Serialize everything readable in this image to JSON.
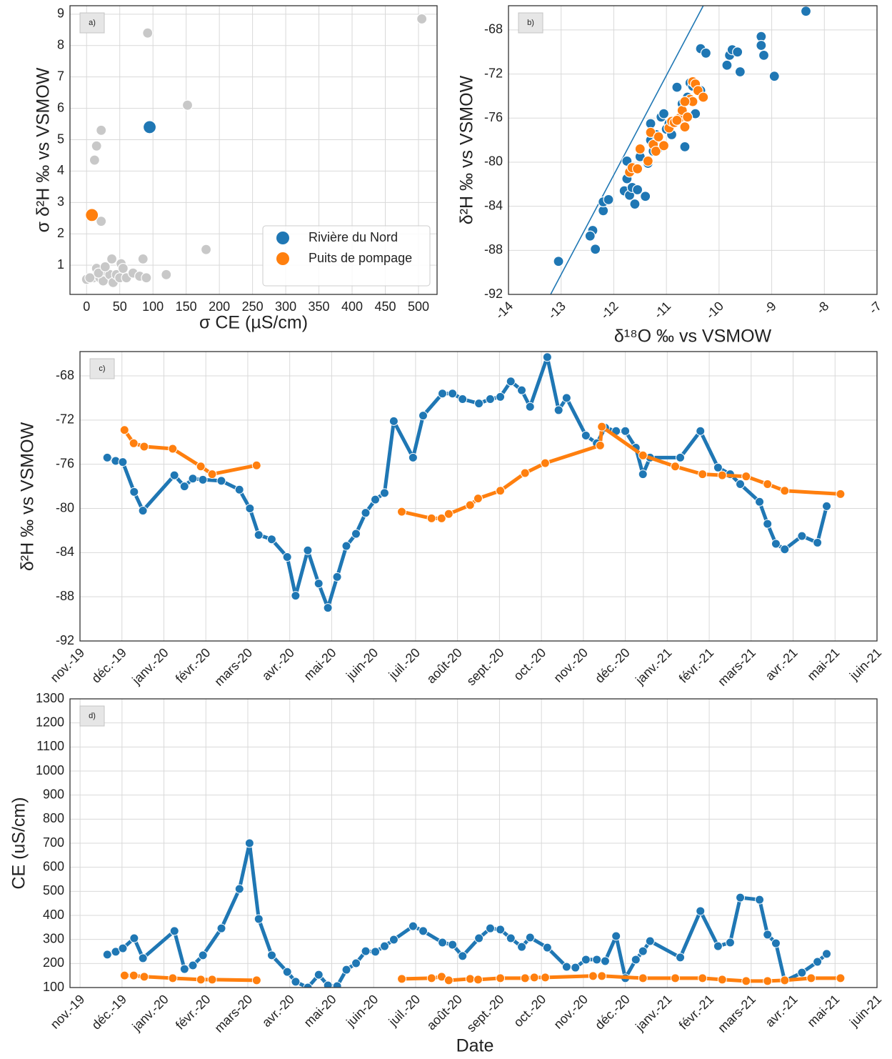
{
  "chart_data": [
    {
      "type": "scatter",
      "panel_label": "a)",
      "xlabel": "σ CE (µS/cm)",
      "ylabel": "σ δ²H ‰ vs VSMOW",
      "xlim": [
        -25,
        528
      ],
      "ylim": [
        0.07,
        9.27
      ],
      "xticks": [
        0,
        50,
        100,
        150,
        200,
        250,
        300,
        350,
        400,
        450,
        500
      ],
      "yticks": [
        1,
        2,
        3,
        4,
        5,
        6,
        7,
        8,
        9
      ],
      "grid": true,
      "legend": "lower right",
      "series": [
        {
          "color": "#c8c8c8",
          "x": [
            0,
            10,
            15,
            20,
            25,
            30,
            35,
            38,
            40,
            45,
            50,
            52,
            55,
            60,
            70,
            80,
            85,
            90,
            120,
            180,
            12,
            15,
            22,
            22,
            92,
            152,
            505,
            5,
            18,
            28
          ],
          "values": [
            0.55,
            0.6,
            0.9,
            0.6,
            0.5,
            0.8,
            0.7,
            1.2,
            0.45,
            0.7,
            0.6,
            1.05,
            0.9,
            0.6,
            0.75,
            0.65,
            1.2,
            0.6,
            0.7,
            1.5,
            4.35,
            4.8,
            5.3,
            2.4,
            8.4,
            6.1,
            8.85,
            0.6,
            0.75,
            0.95
          ]
        },
        {
          "name": "Rivière du Nord",
          "color": "#1f77b4",
          "x": [
            95
          ],
          "values": [
            5.4
          ]
        },
        {
          "name": "Puits de pompage",
          "color": "#ff7f0e",
          "x": [
            8
          ],
          "values": [
            2.6
          ]
        }
      ]
    },
    {
      "type": "scatter",
      "panel_label": "b)",
      "xlabel": "δ¹⁸O ‰ vs VSMOW",
      "ylabel": "δ²H ‰ vs VSMOW",
      "xlim": [
        -14,
        -7
      ],
      "ylim": [
        -92,
        -65.8
      ],
      "xticks": [
        -14,
        -13,
        -12,
        -11,
        -10,
        -9,
        -8,
        -7
      ],
      "yticks": [
        -92,
        -88,
        -84,
        -80,
        -76,
        -72,
        -68
      ],
      "grid": true,
      "reference_line": {
        "color": "#1f77b4",
        "x": [
          -13.2,
          -10.3
        ],
        "y": [
          -92,
          -65.8
        ]
      },
      "series": [
        {
          "color": "#1f77b4",
          "x": [
            -13.05,
            -12.4,
            -12.45,
            -12.35,
            -12.2,
            -12.2,
            -12.1,
            -11.8,
            -11.75,
            -11.75,
            -11.7,
            -11.65,
            -11.55,
            -11.6,
            -11.4,
            -11.5,
            -11.35,
            -11.3,
            -11.3,
            -11.2,
            -11.1,
            -11.05,
            -11.0,
            -10.95,
            -10.8,
            -10.75,
            -10.7,
            -10.65,
            -10.6,
            -10.55,
            -10.5,
            -10.45,
            -10.35,
            -10.35,
            -10.25,
            -9.85,
            -9.8,
            -9.75,
            -9.65,
            -9.6,
            -9.2,
            -9.2,
            -9.15,
            -8.95,
            -8.35,
            -11.25,
            -10.9,
            -11.15
          ],
          "values": [
            -89.0,
            -86.2,
            -86.7,
            -87.9,
            -84.4,
            -83.6,
            -83.4,
            -82.6,
            -81.5,
            -79.9,
            -83.0,
            -82.3,
            -82.5,
            -83.8,
            -83.1,
            -79.5,
            -80.1,
            -78.0,
            -76.5,
            -77.5,
            -75.9,
            -75.6,
            -77.0,
            -76.5,
            -73.2,
            -76.1,
            -74.7,
            -78.6,
            -74.1,
            -72.8,
            -73.1,
            -75.6,
            -69.7,
            -73.5,
            -70.1,
            -71.2,
            -70.3,
            -69.8,
            -70.0,
            -71.8,
            -68.6,
            -69.4,
            -70.3,
            -72.2,
            -66.3,
            -79.0,
            -77.5,
            -78.7
          ]
        },
        {
          "color": "#ff7f0e",
          "x": [
            -11.7,
            -11.65,
            -11.55,
            -11.5,
            -11.35,
            -11.3,
            -11.25,
            -11.2,
            -11.15,
            -11.05,
            -10.95,
            -10.9,
            -10.85,
            -10.75,
            -10.7,
            -10.65,
            -10.6,
            -10.55,
            -10.5,
            -10.5,
            -10.45,
            -10.4,
            -10.3,
            -10.65,
            -10.8
          ],
          "values": [
            -80.9,
            -80.5,
            -80.6,
            -78.8,
            -79.9,
            -77.3,
            -78.4,
            -79.0,
            -77.7,
            -78.5,
            -76.9,
            -76.3,
            -76.4,
            -76.0,
            -75.3,
            -76.8,
            -75.9,
            -74.3,
            -72.7,
            -74.5,
            -72.9,
            -73.5,
            -74.1,
            -74.5,
            -76.2
          ]
        }
      ]
    },
    {
      "type": "line",
      "panel_label": "c)",
      "xlabel": "Date",
      "ylabel": "δ²H ‰ vs VSMOW",
      "xlim": [
        0,
        19
      ],
      "ylim": [
        -92,
        -65.8
      ],
      "xticks": [
        {
          "value": 0,
          "label": "nov.-19"
        },
        {
          "value": 1,
          "label": "déc.-19"
        },
        {
          "value": 2,
          "label": "janv.-20"
        },
        {
          "value": 3,
          "label": "févr.-20"
        },
        {
          "value": 4,
          "label": "mars-20"
        },
        {
          "value": 5,
          "label": "avr.-20"
        },
        {
          "value": 6,
          "label": "mai-20"
        },
        {
          "value": 7,
          "label": "juin-20"
        },
        {
          "value": 8,
          "label": "juil.-20"
        },
        {
          "value": 9,
          "label": "août-20"
        },
        {
          "value": 10,
          "label": "sept.-20"
        },
        {
          "value": 11,
          "label": "oct.-20"
        },
        {
          "value": 12,
          "label": "nov.-20"
        },
        {
          "value": 13,
          "label": "déc.-20"
        },
        {
          "value": 14,
          "label": "janv.-21"
        },
        {
          "value": 15,
          "label": "févr.-21"
        },
        {
          "value": 16,
          "label": "mars-21"
        },
        {
          "value": 17,
          "label": "avr.-21"
        },
        {
          "value": 18,
          "label": "mai-21"
        },
        {
          "value": 19,
          "label": "juin-21"
        }
      ],
      "yticks": [
        -92,
        -88,
        -84,
        -80,
        -76,
        -72,
        -68
      ],
      "grid": true,
      "series": [
        {
          "color": "#1f77b4",
          "x": [
            0.65,
            0.85,
            1.02,
            1.29,
            1.5,
            2.25,
            2.49,
            2.69,
            2.93,
            3.37,
            3.8,
            4.05,
            4.26,
            4.57,
            4.94,
            5.14,
            5.43,
            5.69,
            5.91,
            6.13,
            6.35,
            6.58,
            6.81,
            7.04,
            7.26,
            7.48,
            7.94,
            8.18,
            8.64,
            8.88,
            9.12,
            9.51,
            9.78,
            10.02,
            10.27,
            10.53,
            10.73,
            11.14,
            11.41,
            11.6,
            12.06,
            12.32,
            12.52,
            12.78,
            13.0,
            13.25,
            13.42,
            13.59,
            14.31,
            14.79,
            15.21,
            15.5,
            15.74,
            16.2,
            16.39,
            16.59,
            16.8,
            17.21,
            17.58,
            17.8
          ],
          "values": [
            -75.4,
            -75.7,
            -75.8,
            -78.5,
            -80.2,
            -77.0,
            -78.0,
            -77.3,
            -77.4,
            -77.5,
            -78.3,
            -80.0,
            -82.4,
            -82.8,
            -84.4,
            -87.9,
            -83.8,
            -86.8,
            -89.0,
            -86.2,
            -83.4,
            -82.3,
            -80.4,
            -79.2,
            -78.6,
            -72.1,
            -75.4,
            -71.6,
            -69.6,
            -69.6,
            -70.1,
            -70.5,
            -70.1,
            -69.9,
            -68.5,
            -69.3,
            -70.8,
            -66.3,
            -71.1,
            -70.0,
            -73.4,
            -74.1,
            -72.7,
            -73.0,
            -73.0,
            -74.5,
            -76.9,
            -75.4,
            -75.4,
            -73.0,
            -76.3,
            -76.9,
            -77.8,
            -79.4,
            -81.4,
            -83.2,
            -83.7,
            -82.5,
            -83.1,
            -79.8
          ]
        },
        {
          "color": "#ff7f0e",
          "x": [
            1.06,
            1.28,
            1.53,
            2.21,
            2.88,
            3.15,
            4.21,
            null,
            7.67,
            8.38,
            8.62,
            8.79,
            9.3,
            9.49,
            10.02,
            10.61,
            11.09,
            12.4,
            12.44,
            13.42,
            14.19,
            14.84,
            15.31,
            15.88,
            16.39,
            16.8,
            18.13
          ],
          "values": [
            -72.9,
            -74.1,
            -74.4,
            -74.6,
            -76.2,
            -76.9,
            -76.1,
            null,
            -80.3,
            -80.9,
            -80.9,
            -80.5,
            -79.7,
            -79.1,
            -78.4,
            -76.8,
            -75.9,
            -74.3,
            -72.6,
            -75.2,
            -76.2,
            -76.9,
            -77.0,
            -77.1,
            -77.8,
            -78.4,
            -78.7
          ]
        }
      ]
    },
    {
      "type": "line",
      "panel_label": "d)",
      "xlabel": "Date",
      "ylabel": "CE (uS/cm)",
      "xlim": [
        -0.24,
        19
      ],
      "ylim": [
        100,
        1300
      ],
      "xticks": [
        {
          "value": 0,
          "label": "nov.-19"
        },
        {
          "value": 1,
          "label": "déc.-19"
        },
        {
          "value": 2,
          "label": "janv.-20"
        },
        {
          "value": 3,
          "label": "févr.-20"
        },
        {
          "value": 4,
          "label": "mars-20"
        },
        {
          "value": 5,
          "label": "avr.-20"
        },
        {
          "value": 6,
          "label": "mai-20"
        },
        {
          "value": 7,
          "label": "juin-20"
        },
        {
          "value": 8,
          "label": "juil.-20"
        },
        {
          "value": 9,
          "label": "août-20"
        },
        {
          "value": 10,
          "label": "sept.-20"
        },
        {
          "value": 11,
          "label": "oct.-20"
        },
        {
          "value": 12,
          "label": "nov.-20"
        },
        {
          "value": 13,
          "label": "déc.-20"
        },
        {
          "value": 14,
          "label": "janv.-21"
        },
        {
          "value": 15,
          "label": "févr.-21"
        },
        {
          "value": 16,
          "label": "mars-21"
        },
        {
          "value": 17,
          "label": "avr.-21"
        },
        {
          "value": 18,
          "label": "mai-21"
        },
        {
          "value": 19,
          "label": "juin-21"
        }
      ],
      "yticks": [
        100,
        200,
        300,
        400,
        500,
        600,
        700,
        800,
        900,
        1000,
        1100,
        1200,
        1300
      ],
      "grid": true,
      "series": [
        {
          "color": "#1f77b4",
          "x": [
            0.65,
            0.85,
            1.02,
            1.29,
            1.5,
            2.25,
            2.49,
            2.69,
            2.93,
            3.37,
            3.8,
            4.04,
            4.26,
            4.57,
            4.94,
            5.14,
            5.43,
            5.69,
            5.91,
            6.13,
            6.35,
            6.58,
            6.81,
            7.04,
            7.26,
            7.48,
            7.94,
            8.18,
            8.64,
            8.88,
            9.12,
            9.51,
            9.78,
            10.02,
            10.27,
            10.53,
            10.73,
            11.14,
            11.6,
            11.81,
            12.06,
            12.32,
            12.52,
            12.78,
            13.0,
            13.25,
            13.42,
            13.59,
            14.31,
            14.79,
            15.21,
            15.5,
            15.74,
            16.2,
            16.39,
            16.59,
            16.8,
            17.21,
            17.58,
            17.8
          ],
          "values": [
            237,
            249,
            263,
            305,
            222,
            335,
            177,
            192,
            234,
            346,
            510,
            700,
            385,
            234,
            165,
            124,
            100,
            153,
            109,
            106,
            174,
            201,
            251,
            249,
            272,
            299,
            355,
            335,
            287,
            278,
            231,
            305,
            346,
            341,
            305,
            269,
            308,
            266,
            186,
            183,
            216,
            216,
            210,
            314,
            139,
            216,
            251,
            293,
            225,
            418,
            272,
            287,
            474,
            465,
            320,
            284,
            127,
            162,
            207,
            240
          ]
        },
        {
          "color": "#ff7f0e",
          "x": [
            1.06,
            1.28,
            1.53,
            2.21,
            2.88,
            3.15,
            4.21,
            null,
            7.67,
            8.38,
            8.62,
            8.79,
            9.3,
            9.49,
            10.02,
            10.61,
            10.83,
            11.09,
            12.23,
            12.44,
            13.42,
            14.19,
            14.84,
            15.31,
            15.88,
            16.39,
            16.8,
            17.43,
            18.13
          ],
          "values": [
            150,
            150,
            145,
            139,
            133,
            133,
            130,
            null,
            136,
            139,
            145,
            130,
            136,
            133,
            139,
            139,
            142,
            142,
            148,
            148,
            139,
            139,
            139,
            133,
            127,
            127,
            130,
            139,
            139
          ]
        }
      ]
    }
  ]
}
